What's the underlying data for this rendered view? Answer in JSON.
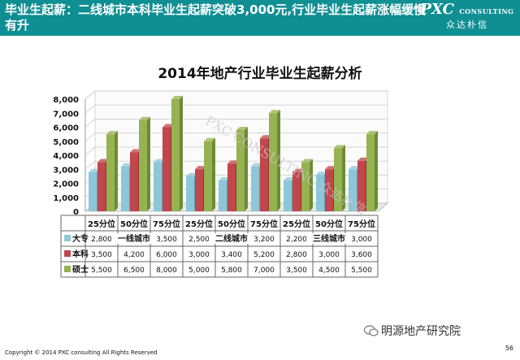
{
  "header": {
    "title": "毕业生起薪：二线城市本科毕业生起薪突破3,000元,行业毕业生起薪涨幅缓慢有升",
    "logo_main": "PXC",
    "logo_suffix": "CONSULTING",
    "logo_sub": "众达朴信"
  },
  "watermark": "PXC CONSULTING 众达朴信",
  "footer": {
    "copyright": "Copyright © 2014  PXC consulting All Rights Reserved",
    "brand": "明源地产研究院",
    "page_number": "56"
  },
  "colors": {
    "header_bg": "#0f8f94",
    "dazhuan": "#8cc7d9",
    "benke": "#c0474b",
    "shuoshi": "#95b350"
  },
  "chart_data": {
    "type": "bar",
    "title": "2014年地产行业毕业生起薪分析",
    "categories": [
      "25分位",
      "50分位",
      "75分位",
      "25分位",
      "50分位",
      "75分位",
      "25分位",
      "50分位",
      "75分位"
    ],
    "groups": [
      "一线城市",
      "二线城市",
      "三线城市"
    ],
    "series": [
      {
        "name": "大专",
        "values": [
          2800,
          3200,
          3500,
          2500,
          2200,
          3200,
          2200,
          2600,
          3000
        ]
      },
      {
        "name": "本科",
        "values": [
          3500,
          4200,
          6000,
          3000,
          3400,
          5200,
          2800,
          3000,
          3600
        ]
      },
      {
        "name": "硕士",
        "values": [
          5500,
          6500,
          8000,
          5000,
          5800,
          7000,
          3500,
          4500,
          5500
        ]
      }
    ],
    "table_rows": [
      [
        "2,800",
        "3,200",
        "3,500",
        "2,500",
        "2,200",
        "3,200",
        "2,200",
        "2,600",
        "3,000"
      ],
      [
        "3,500",
        "4,200",
        "6,000",
        "3,000",
        "3,400",
        "5,200",
        "2,800",
        "3,000",
        "3,600"
      ],
      [
        "5,500",
        "6,500",
        "8,000",
        "5,000",
        "5,800",
        "7,000",
        "3,500",
        "4,500",
        "5,500"
      ]
    ],
    "yticks": [
      "8,000",
      "7,000",
      "6,000",
      "5,000",
      "4,000",
      "3,000",
      "2,000",
      "1,000",
      "0"
    ],
    "ylim": [
      0,
      8000
    ],
    "grid": true,
    "legend": "data table rows"
  }
}
